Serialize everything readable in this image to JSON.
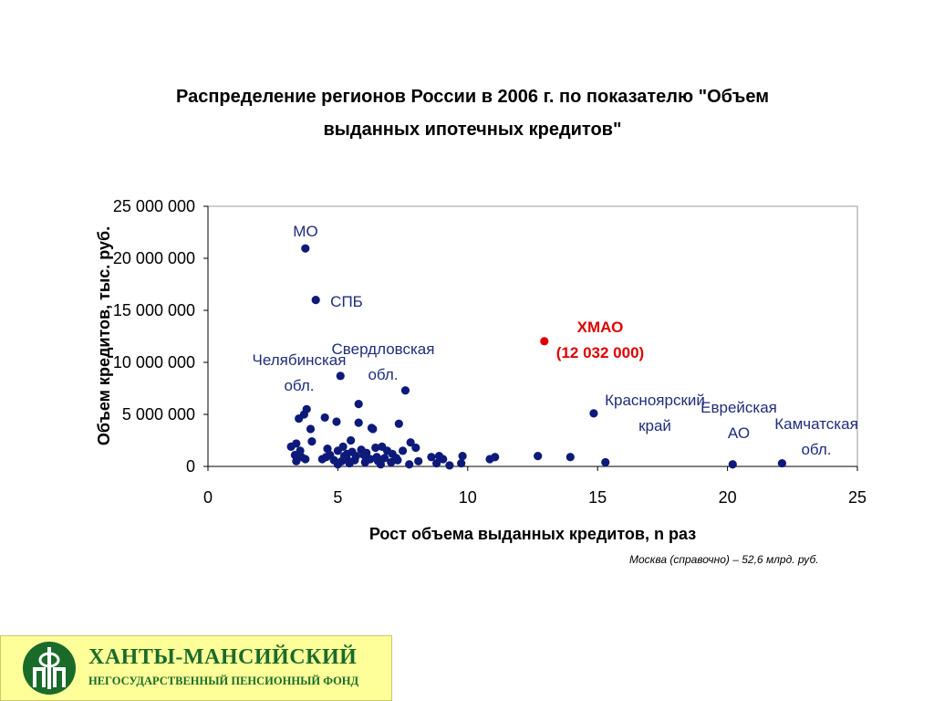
{
  "chart_data": {
    "type": "scatter",
    "title_line1": "Распределение регионов России в 2006 г. по показателю \"Объем",
    "title_line2": "выданных ипотечных кредитов\"",
    "xlabel": "Рост объема выданных кредитов, n раз",
    "ylabel": "Объем кредитов, тыс. руб.",
    "xlim": [
      0,
      25
    ],
    "ylim": [
      0,
      25000000
    ],
    "x_ticks": [
      "0",
      "5",
      "10",
      "15",
      "20",
      "25"
    ],
    "y_ticks": [
      "0",
      "5 000 000",
      "10 000 000",
      "15 000 000",
      "20 000 000",
      "25 000 000"
    ],
    "grid": false,
    "points": [
      [
        3.75,
        20950000
      ],
      [
        4.15,
        16000000
      ],
      [
        5.1,
        8700000
      ],
      [
        12.95,
        12032000
      ],
      [
        14.85,
        5100000
      ],
      [
        20.2,
        200000
      ],
      [
        22.1,
        300000
      ],
      [
        7.6,
        7300000
      ],
      [
        5.8,
        6000000
      ],
      [
        3.8,
        5500000
      ],
      [
        3.7,
        5000000
      ],
      [
        3.5,
        4600000
      ],
      [
        4.5,
        4700000
      ],
      [
        4.95,
        4300000
      ],
      [
        5.8,
        4200000
      ],
      [
        6.3,
        3700000
      ],
      [
        6.35,
        3600000
      ],
      [
        7.35,
        4100000
      ],
      [
        3.95,
        3600000
      ],
      [
        4.0,
        2400000
      ],
      [
        3.4,
        2200000
      ],
      [
        3.2,
        1900000
      ],
      [
        3.55,
        1500000
      ],
      [
        3.35,
        1100000
      ],
      [
        3.6,
        900000
      ],
      [
        3.75,
        700000
      ],
      [
        3.4,
        500000
      ],
      [
        4.6,
        1700000
      ],
      [
        5.0,
        1500000
      ],
      [
        5.2,
        1900000
      ],
      [
        5.5,
        2500000
      ],
      [
        5.35,
        1200000
      ],
      [
        5.55,
        1400000
      ],
      [
        5.7,
        1000000
      ],
      [
        5.9,
        1600000
      ],
      [
        6.1,
        1300000
      ],
      [
        6.45,
        1800000
      ],
      [
        6.7,
        1900000
      ],
      [
        6.9,
        1500000
      ],
      [
        7.1,
        1200000
      ],
      [
        7.25,
        800000
      ],
      [
        7.8,
        2300000
      ],
      [
        8.0,
        1800000
      ],
      [
        8.6,
        900000
      ],
      [
        8.9,
        1000000
      ],
      [
        9.05,
        700000
      ],
      [
        9.8,
        1000000
      ],
      [
        10.85,
        700000
      ],
      [
        11.05,
        900000
      ],
      [
        12.7,
        1000000
      ],
      [
        13.95,
        900000
      ],
      [
        15.3,
        400000
      ],
      [
        4.4,
        700000
      ],
      [
        4.55,
        900000
      ],
      [
        4.85,
        600000
      ],
      [
        5.0,
        200000
      ],
      [
        5.15,
        500000
      ],
      [
        5.35,
        700000
      ],
      [
        5.45,
        300000
      ],
      [
        5.65,
        600000
      ],
      [
        6.05,
        400000
      ],
      [
        6.25,
        700000
      ],
      [
        6.55,
        500000
      ],
      [
        6.65,
        200000
      ],
      [
        6.8,
        800000
      ],
      [
        7.05,
        400000
      ],
      [
        7.3,
        600000
      ],
      [
        7.75,
        200000
      ],
      [
        8.8,
        300000
      ],
      [
        9.3,
        100000
      ],
      [
        9.75,
        300000
      ],
      [
        5.25,
        1000000
      ],
      [
        6.0,
        1100000
      ],
      [
        7.5,
        1500000
      ],
      [
        8.1,
        500000
      ],
      [
        4.7,
        1100000
      ],
      [
        6.5,
        900000
      ]
    ],
    "highlight_index": 3,
    "colors": {
      "point": "#0d1a7a",
      "highlight": "#e00000",
      "annotation": "#1f2d7a"
    },
    "annotations": [
      {
        "lines": [
          "МО"
        ]
      },
      {
        "lines": [
          "СПБ"
        ]
      },
      {
        "lines": [
          "Челябинская",
          "обл."
        ]
      },
      {
        "lines": [
          "Свердловская",
          "обл."
        ]
      },
      {
        "lines": [
          "ХМАО",
          "(12 032 000)"
        ],
        "highlight": true
      },
      {
        "lines": [
          "Красноярский",
          "край"
        ]
      },
      {
        "lines": [
          "Еврейская",
          "АО"
        ]
      },
      {
        "lines": [
          "Камчатская",
          "обл."
        ]
      }
    ]
  },
  "footnote": "Москва (справочно) – 52,6 млрд. руб.",
  "logo": {
    "title": "ХАНТЫ-МАНСИЙСКИЙ",
    "subtitle": "НЕГОСУДАРСТВЕННЫЙ ПЕНСИОННЫЙ ФОНД"
  }
}
